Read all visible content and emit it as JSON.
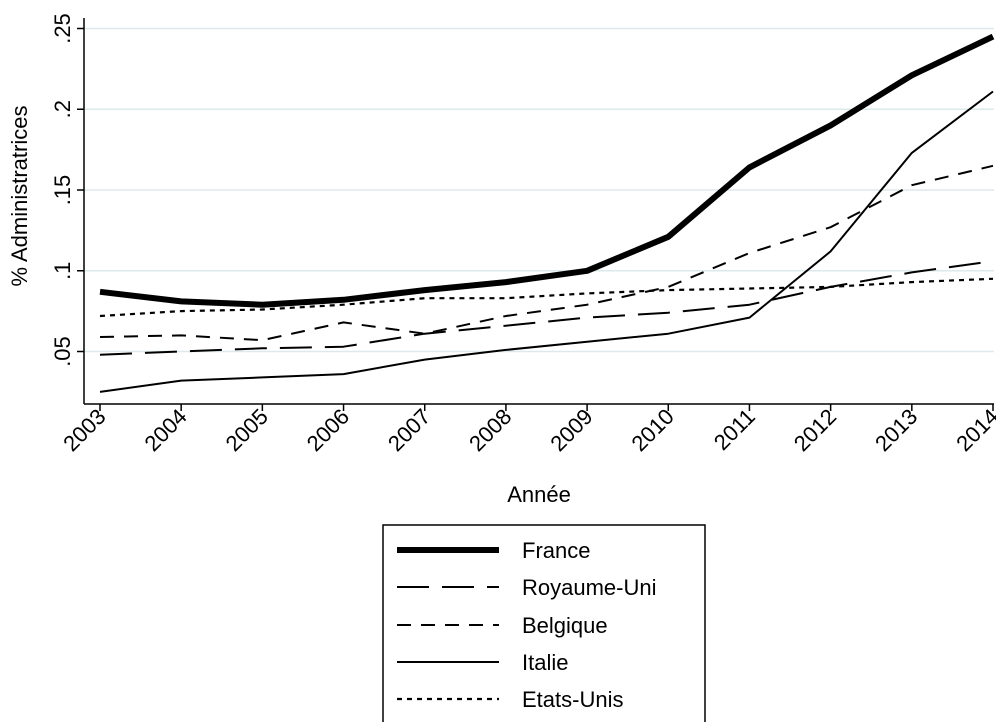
{
  "chart_data": {
    "type": "line",
    "title": "",
    "xlabel": "Année",
    "ylabel": "% Administratrices",
    "categories": [
      "2003",
      "2004",
      "2005",
      "2006",
      "2007",
      "2008",
      "2009",
      "2010",
      "2011",
      "2012",
      "2013",
      "2014"
    ],
    "yticks": [
      ".05",
      ".1",
      ".15",
      ".2",
      ".25"
    ],
    "ytick_values": [
      0.05,
      0.1,
      0.15,
      0.2,
      0.25
    ],
    "ylim": [
      0.0175,
      0.2565
    ],
    "grid": true,
    "legend_position": "bottom",
    "series": [
      {
        "name": "France",
        "style": "thick",
        "values": [
          0.087,
          0.081,
          0.079,
          0.082,
          0.088,
          0.093,
          0.1,
          0.121,
          0.164,
          0.19,
          0.221,
          0.245
        ]
      },
      {
        "name": "Royaume-Uni",
        "style": "longdash",
        "values": [
          0.048,
          0.05,
          0.052,
          0.053,
          0.061,
          0.066,
          0.071,
          0.074,
          0.079,
          0.09,
          0.099,
          0.106
        ]
      },
      {
        "name": "Belgique",
        "style": "dash",
        "values": [
          0.059,
          0.06,
          0.057,
          0.068,
          0.061,
          0.072,
          0.079,
          0.09,
          0.111,
          0.127,
          0.153,
          0.165
        ]
      },
      {
        "name": "Italie",
        "style": "solid",
        "values": [
          0.025,
          0.032,
          0.034,
          0.036,
          0.045,
          0.051,
          0.056,
          0.061,
          0.071,
          0.112,
          0.173,
          0.211
        ]
      },
      {
        "name": "Etats-Unis",
        "style": "dot",
        "values": [
          0.072,
          0.075,
          0.076,
          0.079,
          0.083,
          0.083,
          0.086,
          0.088,
          0.089,
          0.09,
          0.093,
          0.095
        ]
      }
    ]
  },
  "colors": {
    "line": "#000000",
    "grid": "#dde9ea",
    "background": "#ffffff"
  }
}
